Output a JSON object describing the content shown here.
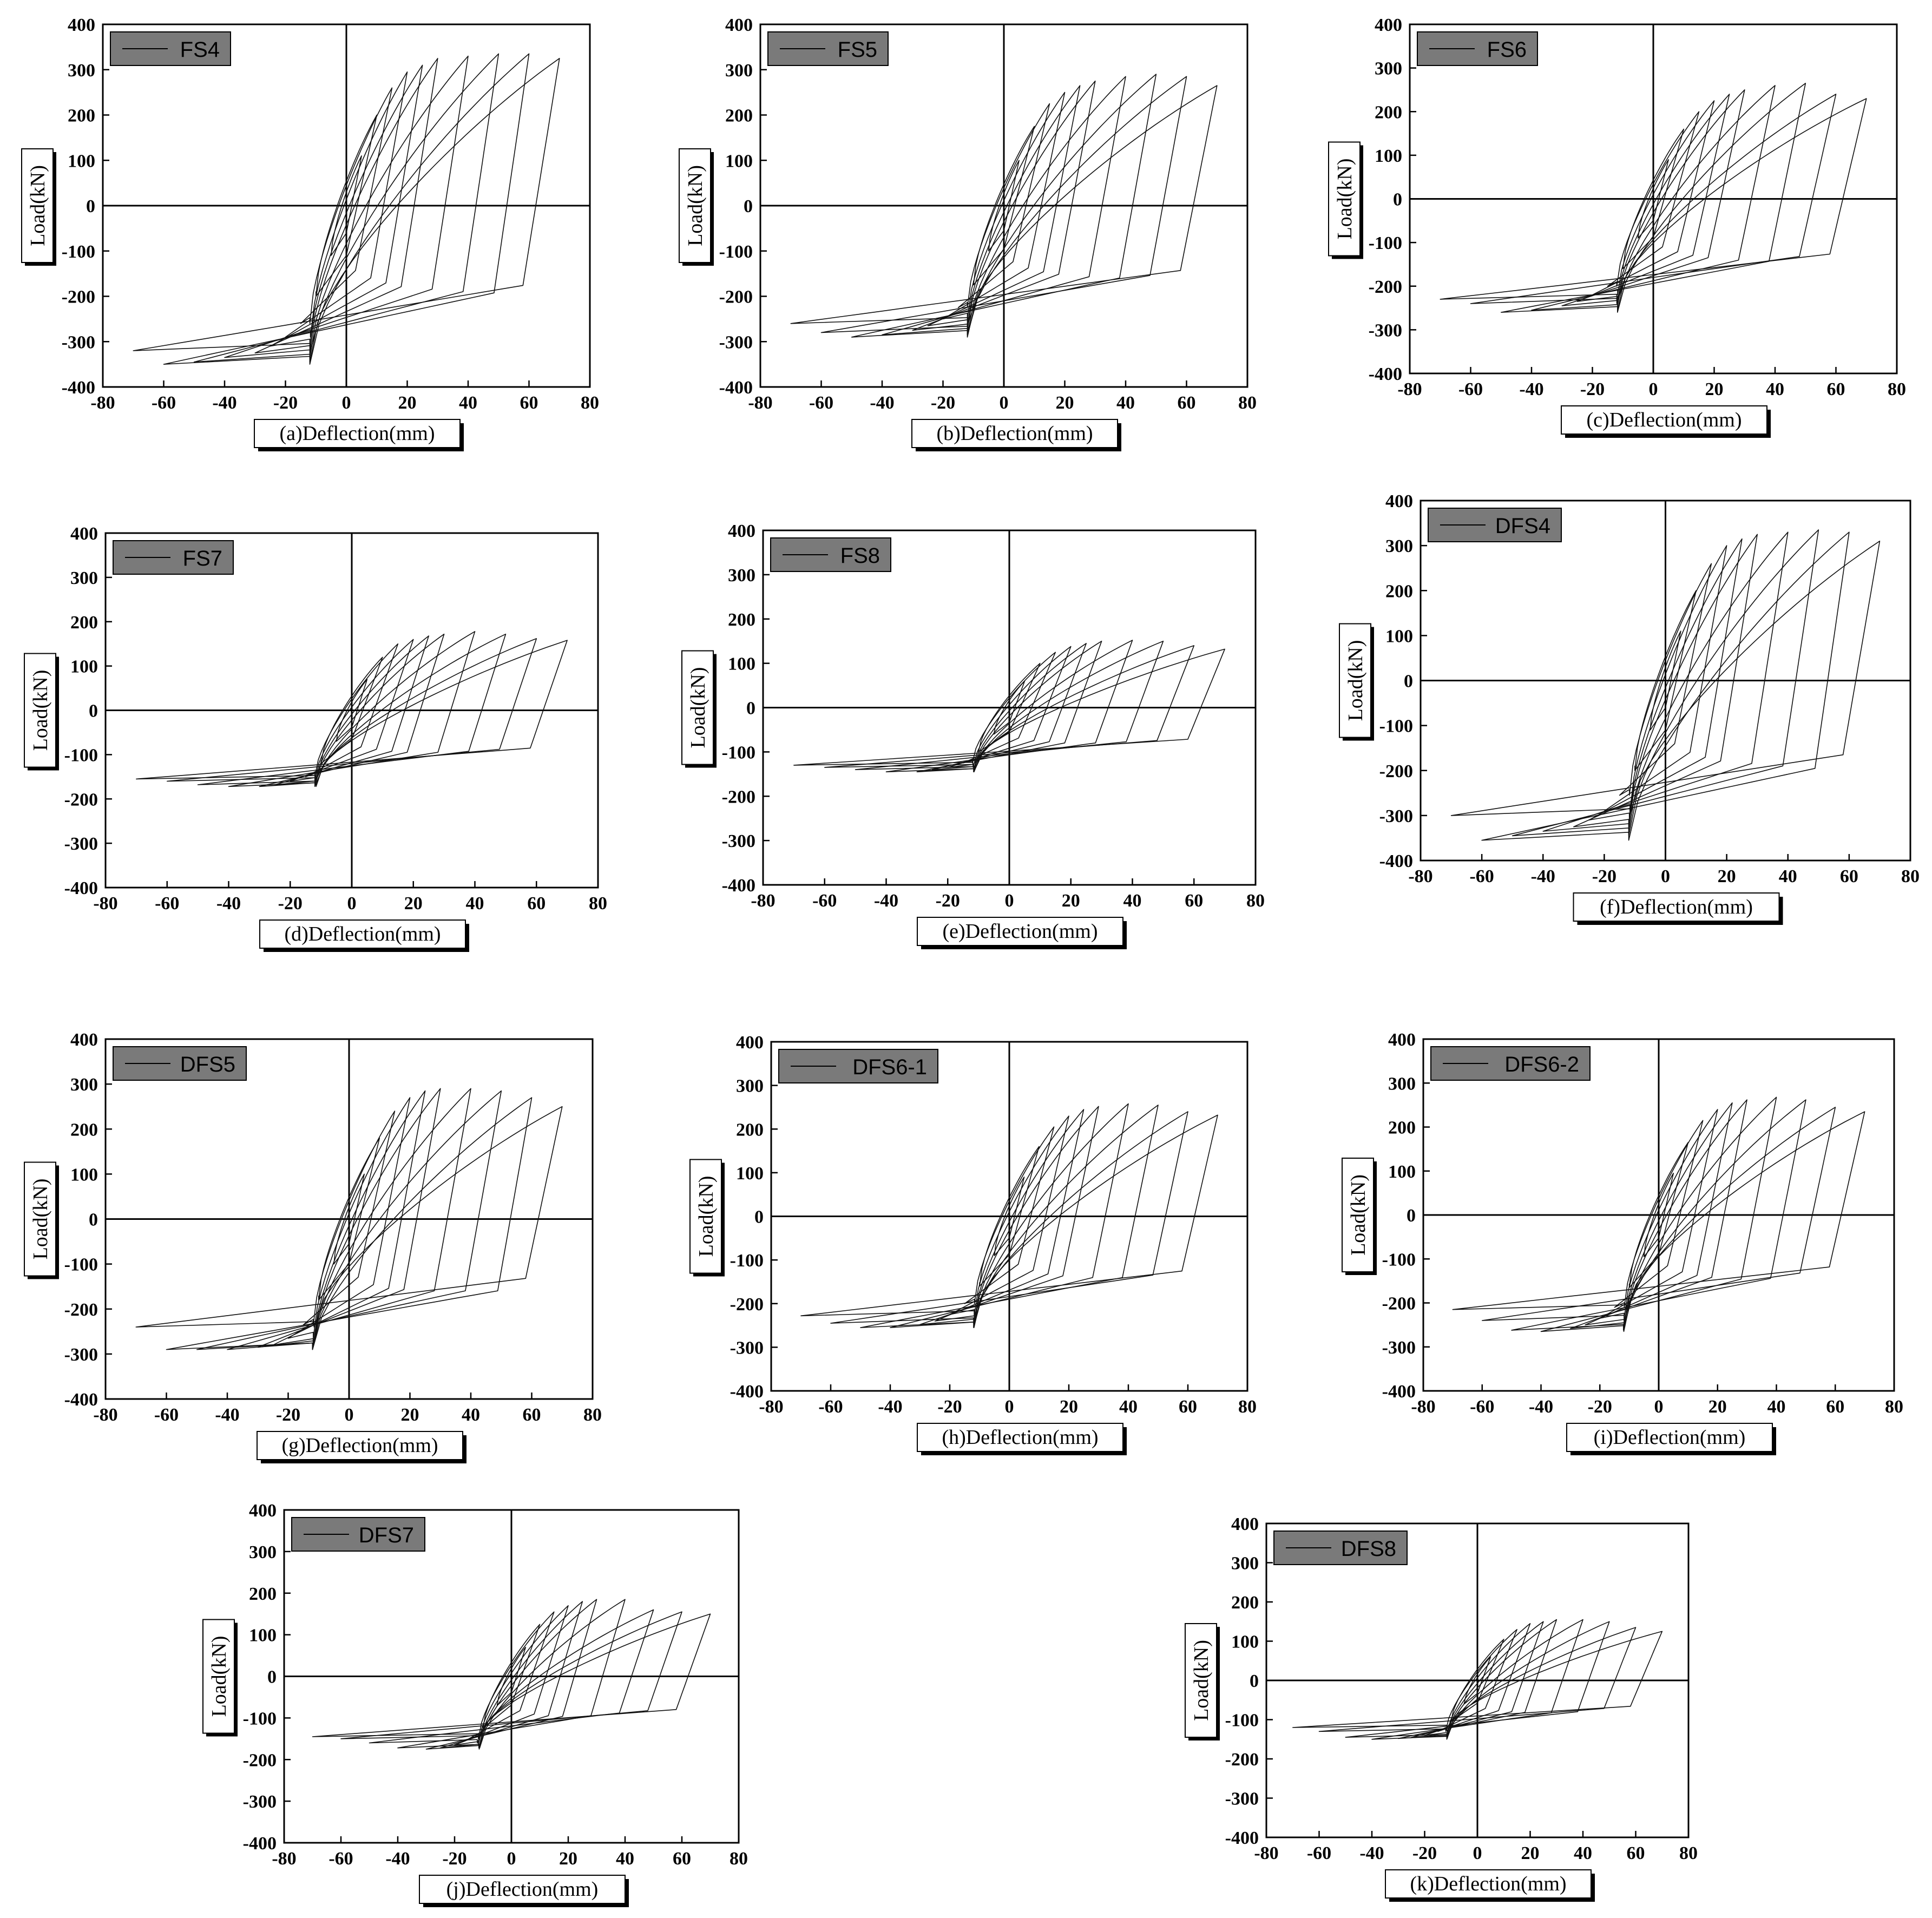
{
  "chart_data": [
    {
      "type": "line",
      "panel_id": "a",
      "legend": "FS4",
      "xlabel": "(a)Deflection(mm)",
      "ylabel": "Load(kN)",
      "xlim": [
        -80,
        80
      ],
      "ylim": [
        -400,
        400
      ],
      "xticks": [
        "-80",
        "-60",
        "-40",
        "-20",
        "0",
        "20",
        "40",
        "60",
        "80"
      ],
      "yticks": [
        "400",
        "300",
        "200",
        "100",
        "0",
        "-100",
        "-200",
        "-300",
        "-400"
      ],
      "amplitudes": [
        5,
        10,
        15,
        20,
        25,
        30,
        40,
        50,
        60,
        70
      ],
      "peak_pos_load": [
        110,
        200,
        260,
        295,
        310,
        325,
        330,
        335,
        335,
        325
      ],
      "peak_neg_load": [
        -110,
        -200,
        -260,
        -290,
        -310,
        -325,
        -335,
        -345,
        -350,
        -320
      ]
    },
    {
      "type": "line",
      "panel_id": "b",
      "legend": "FS5",
      "xlabel": "(b)Deflection(mm)",
      "ylabel": "Load(kN)",
      "xlim": [
        -80,
        80
      ],
      "ylim": [
        -400,
        400
      ],
      "xticks": [
        "-80",
        "-60",
        "-40",
        "-20",
        "0",
        "20",
        "40",
        "60",
        "80"
      ],
      "yticks": [
        "400",
        "300",
        "200",
        "100",
        "0",
        "-100",
        "-200",
        "-300",
        "-400"
      ],
      "amplitudes": [
        5,
        10,
        15,
        20,
        25,
        30,
        40,
        50,
        60,
        70
      ],
      "peak_pos_load": [
        100,
        175,
        225,
        250,
        265,
        275,
        285,
        290,
        285,
        265
      ],
      "peak_neg_load": [
        -100,
        -175,
        -225,
        -250,
        -265,
        -275,
        -285,
        -290,
        -280,
        -260
      ]
    },
    {
      "type": "line",
      "panel_id": "c",
      "legend": "FS6",
      "xlabel": "(c)Deflection(mm)",
      "ylabel": "Load(kN)",
      "xlim": [
        -80,
        80
      ],
      "ylim": [
        -400,
        400
      ],
      "xticks": [
        "-80",
        "-60",
        "-40",
        "-20",
        "0",
        "20",
        "40",
        "60",
        "80"
      ],
      "yticks": [
        "400",
        "300",
        "200",
        "100",
        "0",
        "-100",
        "-200",
        "-300",
        "-400"
      ],
      "amplitudes": [
        5,
        10,
        15,
        20,
        25,
        30,
        40,
        50,
        60,
        70
      ],
      "peak_pos_load": [
        90,
        160,
        200,
        225,
        240,
        250,
        260,
        265,
        240,
        230
      ],
      "peak_neg_load": [
        -90,
        -160,
        -200,
        -220,
        -235,
        -245,
        -255,
        -260,
        -240,
        -230
      ]
    },
    {
      "type": "line",
      "panel_id": "d",
      "legend": "FS7",
      "xlabel": "(d)Deflection(mm)",
      "ylabel": "Load(kN)",
      "xlim": [
        -80,
        80
      ],
      "ylim": [
        -400,
        400
      ],
      "xticks": [
        "-80",
        "-60",
        "-40",
        "-20",
        "0",
        "20",
        "40",
        "60",
        "80"
      ],
      "yticks": [
        "400",
        "300",
        "200",
        "100",
        "0",
        "-100",
        "-200",
        "-300",
        "-400"
      ],
      "amplitudes": [
        5,
        10,
        15,
        20,
        25,
        30,
        40,
        50,
        60,
        70
      ],
      "peak_pos_load": [
        70,
        120,
        150,
        160,
        168,
        172,
        178,
        172,
        162,
        158
      ],
      "peak_neg_load": [
        -70,
        -120,
        -150,
        -160,
        -168,
        -172,
        -172,
        -168,
        -160,
        -155
      ]
    },
    {
      "type": "line",
      "panel_id": "e",
      "legend": "FS8",
      "xlabel": "(e)Deflection(mm)",
      "ylabel": "Load(kN)",
      "xlim": [
        -80,
        80
      ],
      "ylim": [
        -400,
        400
      ],
      "xticks": [
        "-80",
        "-60",
        "-40",
        "-20",
        "0",
        "20",
        "40",
        "60",
        "80"
      ],
      "yticks": [
        "400",
        "300",
        "200",
        "100",
        "0",
        "-100",
        "-200",
        "-300",
        "-400"
      ],
      "amplitudes": [
        5,
        10,
        15,
        20,
        25,
        30,
        40,
        50,
        60,
        70
      ],
      "peak_pos_load": [
        60,
        100,
        125,
        138,
        145,
        150,
        152,
        150,
        140,
        132
      ],
      "peak_neg_load": [
        -60,
        -100,
        -125,
        -135,
        -140,
        -145,
        -145,
        -140,
        -135,
        -130
      ]
    },
    {
      "type": "line",
      "panel_id": "f",
      "legend": "DFS4",
      "xlabel": "(f)Deflection(mm)",
      "ylabel": "Load(kN)",
      "xlim": [
        -80,
        80
      ],
      "ylim": [
        -400,
        400
      ],
      "xticks": [
        "-80",
        "-60",
        "-40",
        "-20",
        "0",
        "20",
        "40",
        "60",
        "80"
      ],
      "yticks": [
        "400",
        "300",
        "200",
        "100",
        "0",
        "-100",
        "-200",
        "-300",
        "-400"
      ],
      "amplitudes": [
        5,
        10,
        15,
        20,
        25,
        30,
        40,
        50,
        60,
        70
      ],
      "peak_pos_load": [
        110,
        200,
        260,
        300,
        315,
        325,
        330,
        335,
        330,
        310
      ],
      "peak_neg_load": [
        -110,
        -200,
        -255,
        -290,
        -310,
        -325,
        -335,
        -345,
        -355,
        -300
      ]
    },
    {
      "type": "line",
      "panel_id": "g",
      "legend": "DFS5",
      "xlabel": "(g)Deflection(mm)",
      "ylabel": "Load(kN)",
      "xlim": [
        -80,
        80
      ],
      "ylim": [
        -400,
        400
      ],
      "xticks": [
        "-80",
        "-60",
        "-40",
        "-20",
        "0",
        "20",
        "40",
        "60",
        "80"
      ],
      "yticks": [
        "400",
        "300",
        "200",
        "100",
        "0",
        "-100",
        "-200",
        "-300",
        "-400"
      ],
      "amplitudes": [
        5,
        10,
        15,
        20,
        25,
        30,
        40,
        50,
        60,
        70
      ],
      "peak_pos_load": [
        100,
        180,
        240,
        270,
        285,
        290,
        290,
        285,
        270,
        250
      ],
      "peak_neg_load": [
        -100,
        -180,
        -235,
        -265,
        -280,
        -285,
        -290,
        -290,
        -290,
        -240
      ]
    },
    {
      "type": "line",
      "panel_id": "h",
      "legend": "DFS6-1",
      "xlabel": "(h)Deflection(mm)",
      "ylabel": "Load(kN)",
      "xlim": [
        -80,
        80
      ],
      "ylim": [
        -400,
        400
      ],
      "xticks": [
        "-80",
        "-60",
        "-40",
        "-20",
        "0",
        "20",
        "40",
        "60",
        "80"
      ],
      "yticks": [
        "400",
        "300",
        "200",
        "100",
        "0",
        "-100",
        "-200",
        "-300",
        "-400"
      ],
      "amplitudes": [
        5,
        10,
        15,
        20,
        25,
        30,
        40,
        50,
        60,
        70
      ],
      "peak_pos_load": [
        90,
        160,
        205,
        230,
        245,
        252,
        258,
        255,
        240,
        232
      ],
      "peak_neg_load": [
        -90,
        -160,
        -200,
        -225,
        -240,
        -248,
        -255,
        -255,
        -245,
        -228
      ]
    },
    {
      "type": "line",
      "panel_id": "i",
      "legend": "DFS6-2",
      "xlabel": "(i)Deflection(mm)",
      "ylabel": "Load(kN)",
      "xlim": [
        -80,
        80
      ],
      "ylim": [
        -400,
        400
      ],
      "xticks": [
        "-80",
        "-60",
        "-40",
        "-20",
        "0",
        "20",
        "40",
        "60",
        "80"
      ],
      "yticks": [
        "400",
        "300",
        "200",
        "100",
        "0",
        "-100",
        "-200",
        "-300",
        "-400"
      ],
      "amplitudes": [
        5,
        10,
        15,
        20,
        25,
        30,
        40,
        50,
        60,
        70
      ],
      "peak_pos_load": [
        95,
        165,
        215,
        240,
        255,
        262,
        268,
        262,
        245,
        235
      ],
      "peak_neg_load": [
        -95,
        -165,
        -210,
        -235,
        -250,
        -258,
        -265,
        -262,
        -240,
        -215
      ]
    },
    {
      "type": "line",
      "panel_id": "j",
      "legend": "DFS7",
      "xlabel": "(j)Deflection(mm)",
      "ylabel": "Load(kN)",
      "xlim": [
        -80,
        80
      ],
      "ylim": [
        -400,
        400
      ],
      "xticks": [
        "-80",
        "-60",
        "-40",
        "-20",
        "0",
        "20",
        "40",
        "60",
        "80"
      ],
      "yticks": [
        "400",
        "300",
        "200",
        "100",
        "0",
        "-100",
        "-200",
        "-300",
        "-400"
      ],
      "amplitudes": [
        5,
        10,
        15,
        20,
        25,
        30,
        40,
        50,
        60,
        70
      ],
      "peak_pos_load": [
        70,
        125,
        155,
        170,
        180,
        185,
        185,
        160,
        155,
        150
      ],
      "peak_neg_load": [
        -70,
        -125,
        -150,
        -165,
        -172,
        -175,
        -172,
        -160,
        -150,
        -145
      ]
    },
    {
      "type": "line",
      "panel_id": "k",
      "legend": "DFS8",
      "xlabel": "(k)Deflection(mm)",
      "ylabel": "Load(kN)",
      "xlim": [
        -80,
        80
      ],
      "ylim": [
        -400,
        400
      ],
      "xticks": [
        "-80",
        "-60",
        "-40",
        "-20",
        "0",
        "20",
        "40",
        "60",
        "80"
      ],
      "yticks": [
        "400",
        "300",
        "200",
        "100",
        "0",
        "-100",
        "-200",
        "-300",
        "-400"
      ],
      "amplitudes": [
        5,
        10,
        15,
        20,
        25,
        30,
        40,
        50,
        60,
        70
      ],
      "peak_pos_load": [
        60,
        105,
        130,
        145,
        150,
        155,
        155,
        150,
        135,
        125
      ],
      "peak_neg_load": [
        -60,
        -105,
        -130,
        -140,
        -145,
        -148,
        -150,
        -145,
        -130,
        -120
      ]
    }
  ]
}
